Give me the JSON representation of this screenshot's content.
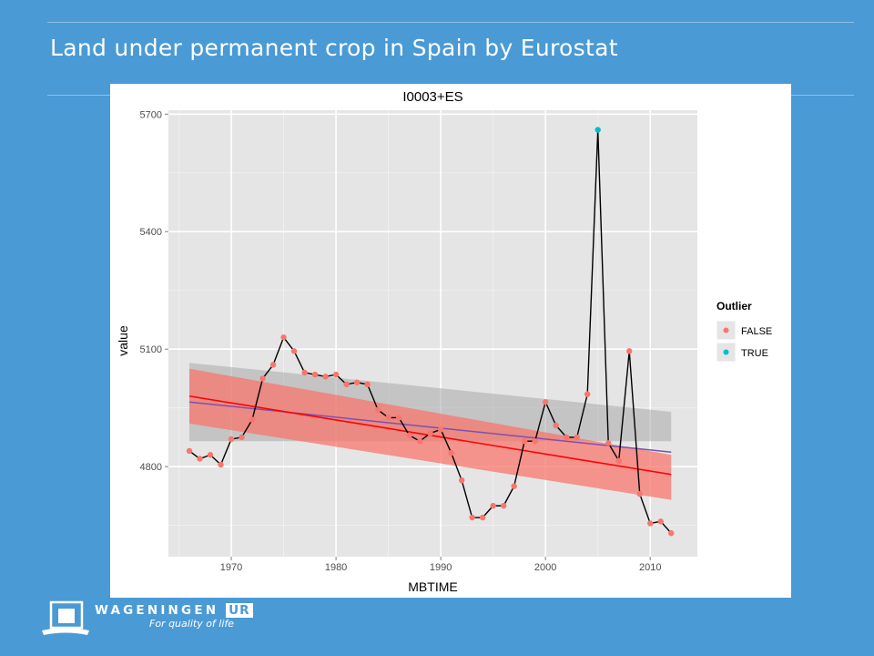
{
  "slide": {
    "title": "Land under permanent crop in Spain by Eurostat"
  },
  "logo": {
    "name": "WAGENINGEN",
    "suffix": "UR",
    "tagline": "For quality of life"
  },
  "chart_data": {
    "type": "line",
    "title": "I0003+ES",
    "xlabel": "MBTIME",
    "ylabel": "value",
    "xlim": [
      1964,
      2014.5
    ],
    "ylim": [
      4570,
      5710
    ],
    "x_ticks": [
      1970,
      1980,
      1990,
      2000,
      2010
    ],
    "y_ticks": [
      4800,
      5100,
      5400,
      5700
    ],
    "grid": true,
    "legend": {
      "title": "Outlier",
      "position": "right",
      "entries": [
        {
          "label": "FALSE",
          "color": "#f8766d"
        },
        {
          "label": "TRUE",
          "color": "#00bfc4"
        }
      ]
    },
    "series": [
      {
        "x": [
          1966,
          1967,
          1968,
          1969,
          1970,
          1971,
          1972,
          1973,
          1974,
          1975,
          1976,
          1977,
          1978,
          1979,
          1980,
          1981,
          1982,
          1983,
          1984,
          1985,
          1986,
          1987,
          1988,
          1989,
          1990,
          1991,
          1992,
          1993,
          1994,
          1995,
          1996,
          1997,
          1998,
          1999,
          2000,
          2001,
          2002,
          2003,
          2004,
          2005,
          2006,
          2007,
          2008,
          2009,
          2010,
          2011,
          2012
        ],
        "values": [
          4840,
          4820,
          4830,
          4805,
          4870,
          4875,
          4920,
          5025,
          5060,
          5130,
          5095,
          5040,
          5035,
          5030,
          5035,
          5010,
          5015,
          5010,
          4945,
          4925,
          4925,
          4880,
          4865,
          4885,
          4895,
          4835,
          4765,
          4670,
          4670,
          4700,
          4700,
          4750,
          4865,
          4865,
          4965,
          4905,
          4875,
          4875,
          4985,
          5660,
          4860,
          4815,
          5095,
          4730,
          4655,
          4660,
          4630
        ],
        "outlier": [
          false,
          false,
          false,
          false,
          false,
          false,
          false,
          false,
          false,
          false,
          false,
          false,
          false,
          false,
          false,
          false,
          false,
          false,
          false,
          false,
          false,
          false,
          false,
          false,
          false,
          false,
          false,
          false,
          false,
          false,
          false,
          false,
          false,
          false,
          false,
          false,
          false,
          false,
          false,
          true,
          false,
          false,
          false,
          false,
          false,
          false,
          false
        ]
      }
    ],
    "fits": {
      "linear_fit": {
        "color": "#ff0000",
        "x": [
          1966,
          2012
        ],
        "y": [
          4980,
          4780
        ]
      },
      "linear_band": {
        "color": "#f8766d",
        "x": [
          1966,
          2012
        ],
        "upper": [
          5050,
          4830
        ],
        "lower": [
          4910,
          4715
        ]
      },
      "mean_fit": {
        "color": "#7b52ae",
        "x": [
          1966,
          2012
        ],
        "y": [
          4965,
          4837
        ]
      },
      "mean_band": {
        "color": "#aaaaaa",
        "x": [
          1966,
          2012
        ],
        "upper": [
          5065,
          4940
        ],
        "lower": [
          4865,
          4865
        ]
      }
    }
  }
}
